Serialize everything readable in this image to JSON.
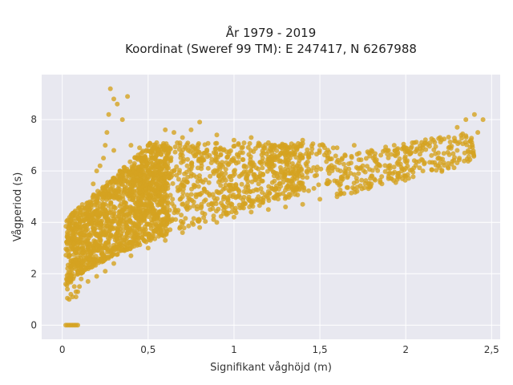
{
  "chart_data": {
    "type": "scatter",
    "title_line1": "År 1979 - 2019",
    "title_line2": "Koordinat (Sweref 99 TM): E 247417, N 6267988",
    "xlabel": "Signifikant våghöjd (m)",
    "ylabel": "Vågperiod (s)",
    "xlim": [
      -0.12,
      2.55
    ],
    "ylim": [
      -0.55,
      9.75
    ],
    "x_ticks": [
      0,
      0.5,
      1,
      1.5,
      2,
      2.5
    ],
    "x_tick_labels": [
      "0",
      "0,5",
      "1",
      "1,5",
      "2",
      "2,5"
    ],
    "y_ticks": [
      0,
      2,
      4,
      6,
      8
    ],
    "y_tick_labels": [
      "0",
      "2",
      "4",
      "6",
      "8"
    ],
    "grid": true,
    "marker_color": "#D4A320",
    "background_color": "#E8E8F0",
    "series": [
      {
        "points": [
          [
            0.02,
            1.6
          ],
          [
            0.03,
            1.4
          ],
          [
            0.04,
            1.8
          ],
          [
            0.05,
            1.2
          ],
          [
            0.06,
            2.0
          ],
          [
            0.05,
            2.5
          ],
          [
            0.07,
            1.5
          ],
          [
            0.08,
            1.1
          ],
          [
            0.09,
            1.3
          ],
          [
            0.1,
            2.2
          ],
          [
            0.11,
            1.8
          ],
          [
            0.12,
            2.8
          ],
          [
            0.13,
            3.5
          ],
          [
            0.14,
            4.2
          ],
          [
            0.15,
            3.0
          ],
          [
            0.16,
            4.8
          ],
          [
            0.18,
            5.5
          ],
          [
            0.2,
            6.0
          ],
          [
            0.22,
            6.2
          ],
          [
            0.24,
            6.5
          ],
          [
            0.25,
            7.0
          ],
          [
            0.26,
            7.5
          ],
          [
            0.27,
            8.2
          ],
          [
            0.28,
            9.2
          ],
          [
            0.3,
            8.8
          ],
          [
            0.32,
            8.6
          ],
          [
            0.35,
            8.0
          ],
          [
            0.38,
            8.9
          ],
          [
            0.3,
            6.8
          ],
          [
            0.4,
            7.0
          ],
          [
            0.45,
            6.9
          ],
          [
            0.5,
            7.0
          ],
          [
            0.55,
            7.1
          ],
          [
            0.6,
            7.6
          ],
          [
            0.65,
            7.5
          ],
          [
            0.7,
            7.3
          ],
          [
            0.75,
            7.6
          ],
          [
            0.8,
            7.9
          ],
          [
            0.9,
            7.4
          ],
          [
            1.0,
            7.2
          ],
          [
            1.1,
            7.3
          ],
          [
            1.2,
            7.1
          ],
          [
            1.3,
            7.0
          ],
          [
            1.4,
            7.2
          ],
          [
            1.5,
            7.0
          ],
          [
            1.6,
            6.9
          ],
          [
            1.7,
            7.0
          ],
          [
            1.8,
            6.8
          ],
          [
            1.9,
            6.8
          ],
          [
            2.0,
            6.9
          ],
          [
            2.1,
            7.0
          ],
          [
            2.2,
            7.3
          ],
          [
            2.3,
            7.7
          ],
          [
            2.35,
            8.0
          ],
          [
            2.4,
            8.2
          ],
          [
            2.45,
            8.0
          ],
          [
            2.42,
            7.5
          ],
          [
            2.38,
            7.2
          ],
          [
            2.3,
            6.8
          ],
          [
            2.2,
            6.3
          ],
          [
            2.1,
            6.0
          ],
          [
            2.0,
            5.8
          ],
          [
            1.9,
            5.7
          ],
          [
            1.8,
            5.5
          ],
          [
            1.7,
            5.3
          ],
          [
            1.6,
            5.0
          ],
          [
            1.5,
            4.9
          ],
          [
            1.4,
            4.7
          ],
          [
            1.3,
            4.6
          ],
          [
            1.2,
            4.5
          ],
          [
            1.1,
            4.4
          ],
          [
            1.0,
            4.2
          ],
          [
            0.9,
            4.0
          ],
          [
            0.8,
            3.8
          ],
          [
            0.7,
            3.6
          ],
          [
            0.6,
            3.3
          ],
          [
            0.5,
            3.0
          ],
          [
            0.4,
            2.7
          ],
          [
            0.3,
            2.4
          ],
          [
            0.25,
            2.1
          ],
          [
            0.2,
            1.9
          ],
          [
            0.15,
            1.7
          ],
          [
            0.1,
            1.5
          ],
          [
            0.08,
            1.3
          ],
          [
            0.06,
            1.1
          ],
          [
            0.04,
            1.0
          ],
          [
            0.03,
            1.05
          ],
          [
            0.04,
            0.0
          ],
          [
            0.05,
            0.0
          ],
          [
            0.06,
            0.0
          ],
          [
            0.07,
            0.0
          ],
          [
            0.08,
            0.0
          ],
          [
            0.09,
            0.0
          ],
          [
            0.02,
            0.0
          ],
          [
            0.03,
            0.0
          ],
          [
            0.35,
            5.8
          ],
          [
            0.45,
            5.5
          ],
          [
            0.55,
            6.2
          ],
          [
            0.65,
            6.0
          ],
          [
            0.75,
            5.8
          ],
          [
            0.85,
            6.1
          ],
          [
            0.95,
            5.9
          ],
          [
            1.05,
            5.9
          ],
          [
            1.15,
            5.8
          ],
          [
            1.25,
            5.9
          ],
          [
            1.35,
            6.0
          ],
          [
            1.45,
            6.0
          ],
          [
            1.55,
            6.1
          ],
          [
            1.65,
            6.1
          ],
          [
            1.75,
            6.2
          ],
          [
            1.85,
            6.2
          ],
          [
            1.95,
            6.3
          ],
          [
            2.05,
            6.4
          ],
          [
            2.15,
            6.6
          ],
          [
            2.25,
            6.9
          ],
          [
            1.2,
            5.2
          ],
          [
            1.4,
            5.4
          ],
          [
            1.6,
            5.6
          ],
          [
            1.8,
            5.8
          ],
          [
            2.0,
            6.1
          ],
          [
            0.4,
            4.0
          ],
          [
            0.5,
            4.5
          ],
          [
            0.6,
            4.8
          ],
          [
            0.7,
            5.0
          ],
          [
            0.8,
            5.1
          ],
          [
            0.9,
            5.2
          ],
          [
            1.0,
            5.3
          ],
          [
            0.3,
            5.0
          ],
          [
            0.25,
            4.5
          ],
          [
            0.2,
            4.0
          ],
          [
            0.15,
            3.5
          ],
          [
            0.12,
            3.0
          ],
          [
            0.18,
            2.5
          ],
          [
            0.22,
            3.2
          ],
          [
            0.28,
            3.8
          ],
          [
            0.35,
            4.5
          ],
          [
            0.42,
            5.2
          ],
          [
            0.5,
            5.8
          ],
          [
            0.6,
            6.5
          ],
          [
            0.7,
            6.6
          ]
        ]
      }
    ]
  }
}
